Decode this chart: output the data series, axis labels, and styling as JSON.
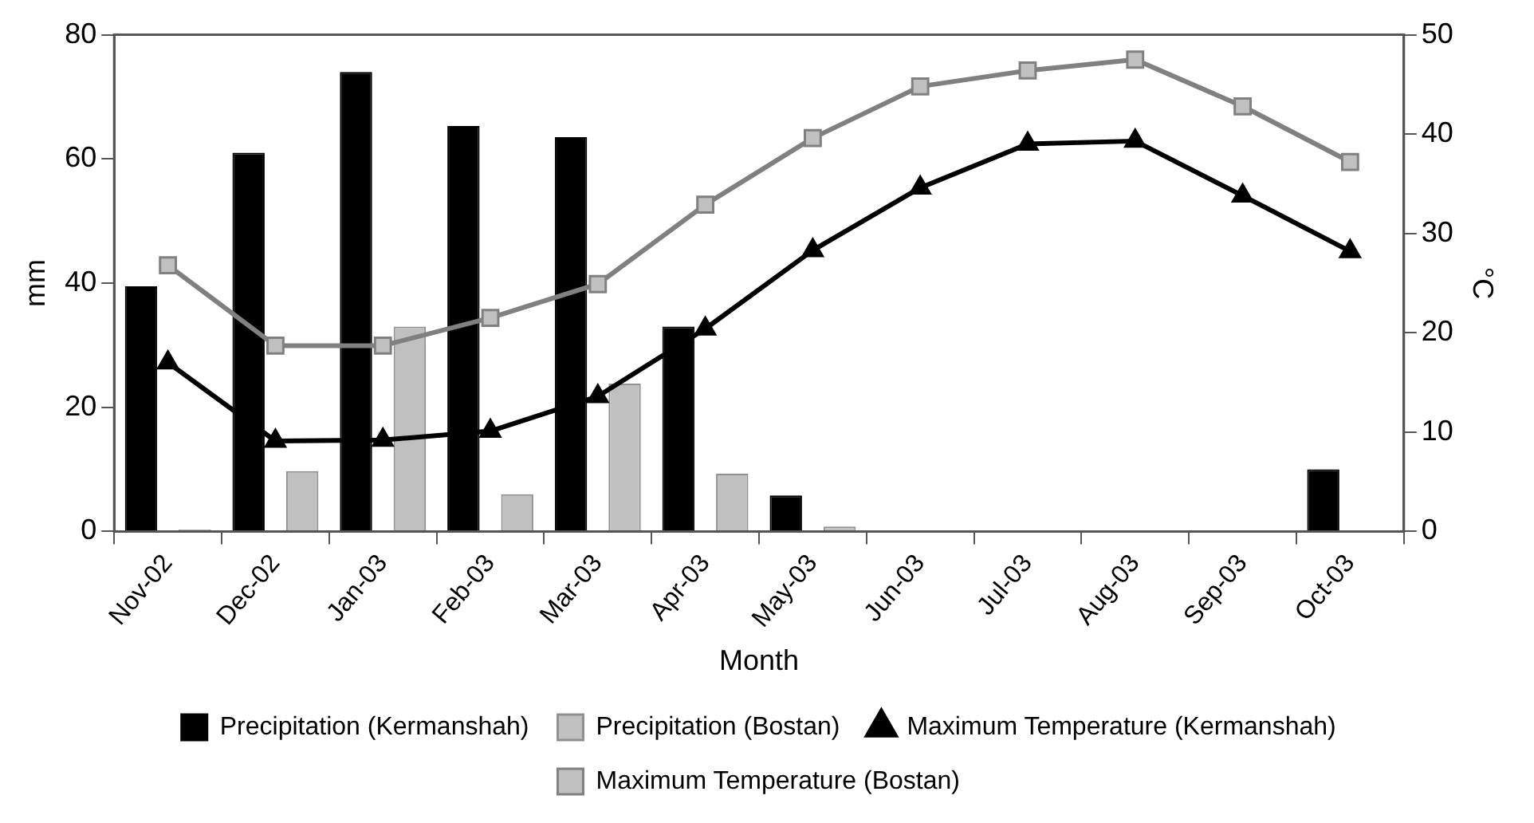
{
  "chart_data": {
    "type": "bar",
    "xlabel": "Month",
    "ylabel": "mm",
    "y2label": "°C",
    "categories": [
      "Nov-02",
      "Dec-02",
      "Jan-03",
      "Feb-03",
      "Mar-03",
      "Apr-03",
      "May-03",
      "Jun-03",
      "Jul-03",
      "Aug-03",
      "Sep-03",
      "Oct-03"
    ],
    "series": [
      {
        "name": "Precipitation (Kermanshah)",
        "color": "#000000",
        "values": [
          39.5,
          61,
          74,
          65.3,
          63.5,
          33,
          5.8,
          0,
          0,
          0,
          0,
          10
        ]
      },
      {
        "name": "Precipitation (Bostan)",
        "color": "#c0c0c0",
        "values": [
          0.3,
          9.7,
          33,
          6,
          23.8,
          9.3,
          0.8,
          0,
          0,
          0,
          0,
          0
        ]
      },
      {
        "name": "Maximum Temperature (Kermanshah)",
        "type": "line",
        "axis": "y2",
        "marker": "triangle",
        "color": "#000000",
        "values": [
          17,
          9.1,
          9.2,
          10.1,
          13.6,
          20.4,
          28.3,
          34.6,
          39,
          39.3,
          33.8,
          28.2
        ]
      },
      {
        "name": "Maximum Temperature (Bostan)",
        "type": "line",
        "axis": "y2",
        "marker": "square",
        "color": "#808080",
        "values": [
          26.8,
          18.7,
          18.7,
          21.5,
          24.9,
          32.9,
          39.6,
          44.8,
          46.4,
          47.5,
          42.8,
          37.2
        ]
      }
    ],
    "ylim": [
      0,
      80
    ],
    "yticks": [
      0,
      20,
      40,
      60,
      80
    ],
    "y2lim": [
      0,
      50
    ],
    "y2ticks": [
      0,
      10,
      20,
      30,
      40,
      50
    ],
    "grid": false,
    "legend": "bottom"
  }
}
